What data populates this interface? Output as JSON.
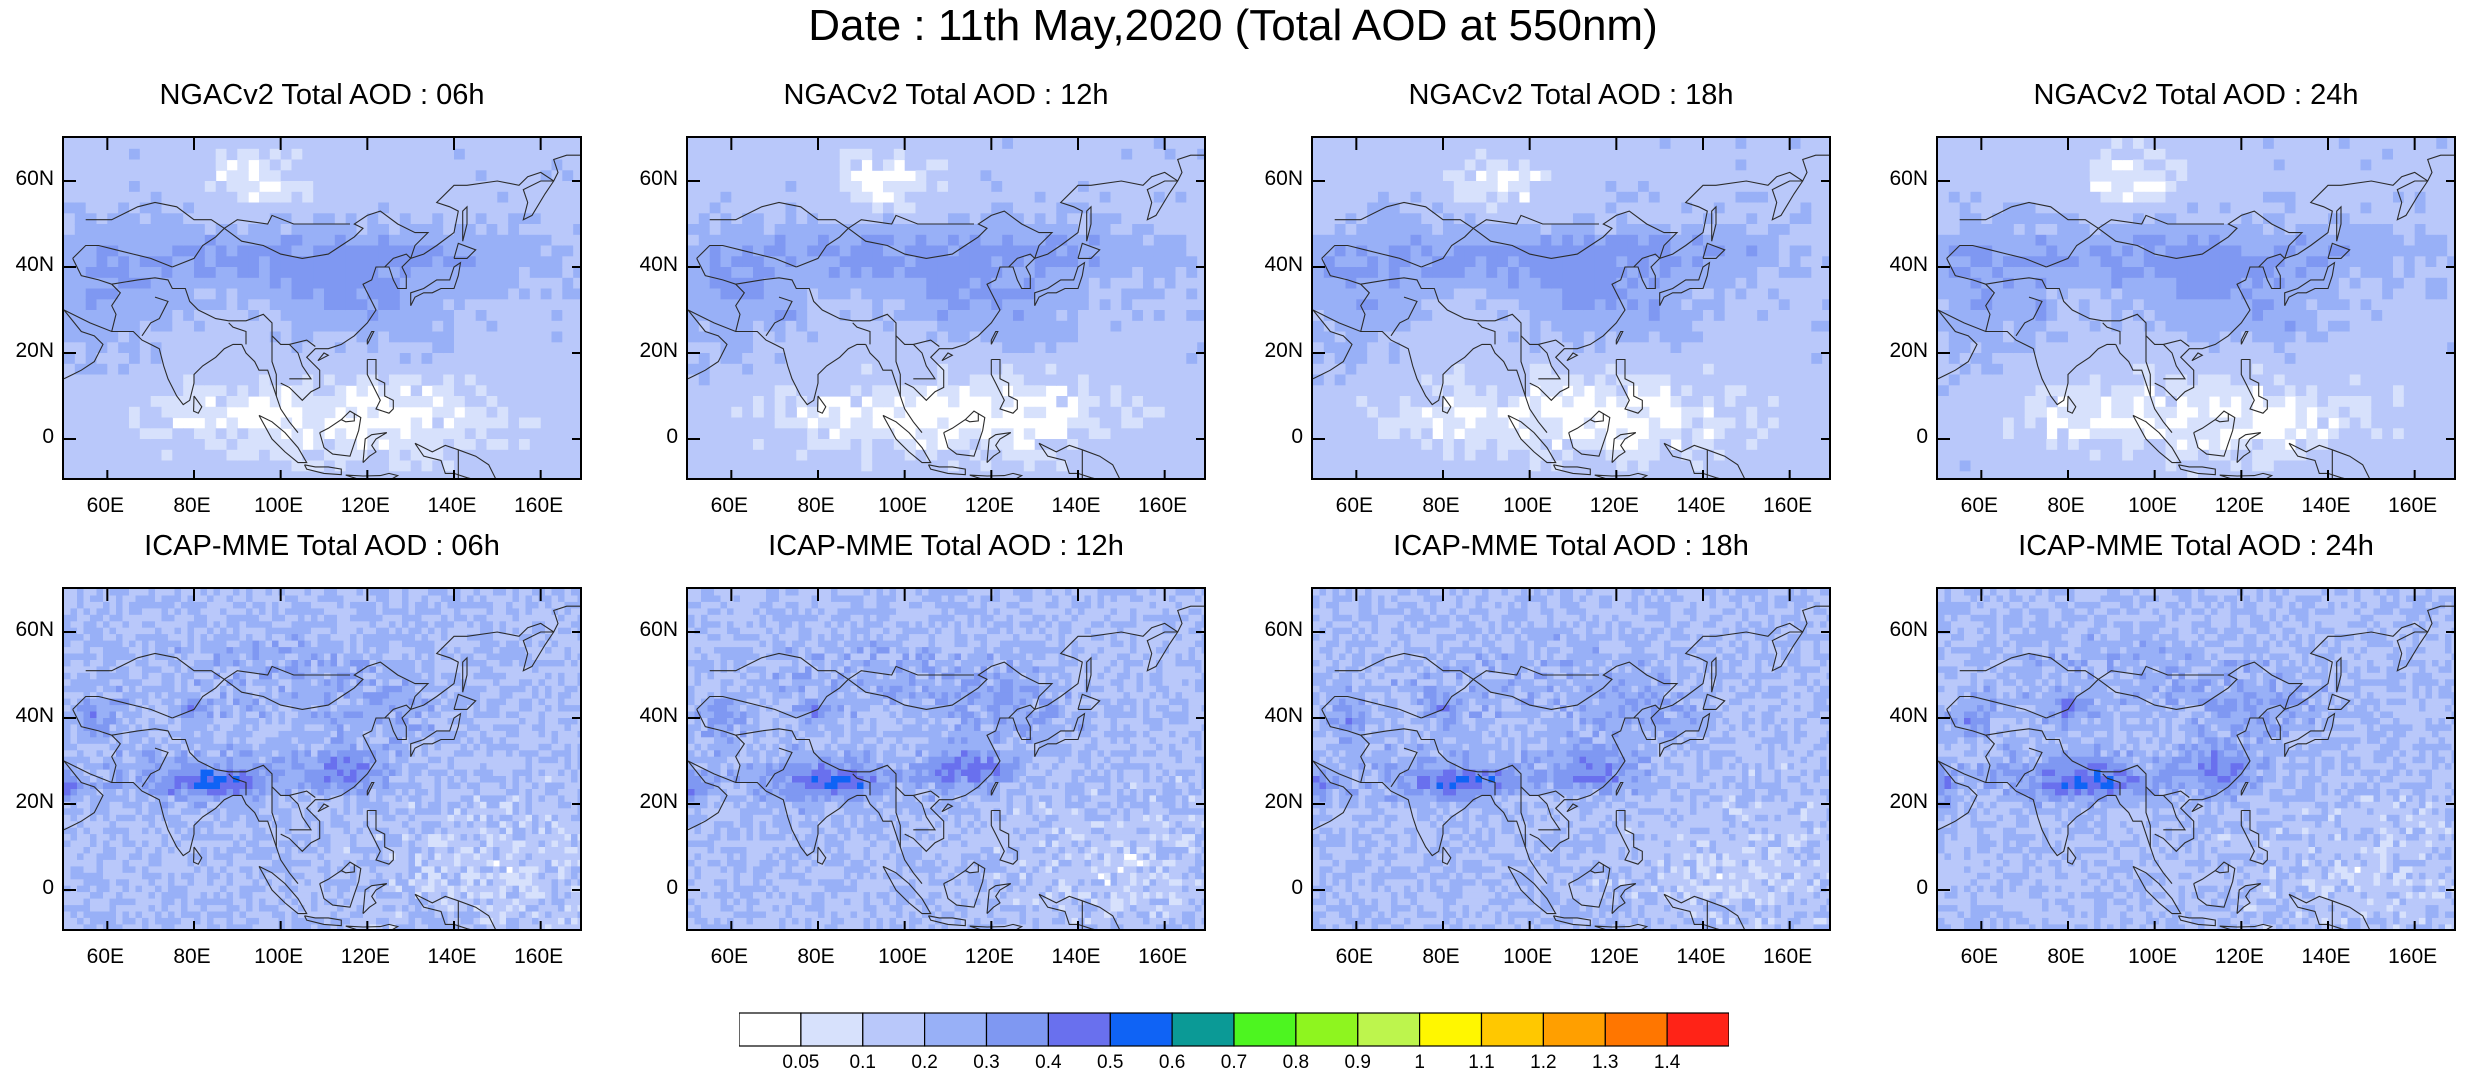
{
  "title": "Date : 11th May,2020 (Total AOD at 550nm)",
  "panels": [
    {
      "title": "NGACv2 Total AOD : 06h",
      "model": "ngac"
    },
    {
      "title": "NGACv2 Total AOD : 12h",
      "model": "ngac"
    },
    {
      "title": "NGACv2 Total AOD : 18h",
      "model": "ngac"
    },
    {
      "title": "NGACv2 Total AOD : 24h",
      "model": "ngac"
    },
    {
      "title": "ICAP-MME Total AOD : 06h",
      "model": "icap"
    },
    {
      "title": "ICAP-MME Total AOD : 12h",
      "model": "icap"
    },
    {
      "title": "ICAP-MME Total AOD : 18h",
      "model": "icap"
    },
    {
      "title": "ICAP-MME Total AOD : 24h",
      "model": "icap"
    }
  ],
  "axes": {
    "lat_ticks": [
      "60N",
      "40N",
      "20N",
      "0"
    ],
    "lat_values": [
      60,
      40,
      20,
      0
    ],
    "lon_ticks": [
      "60E",
      "80E",
      "100E",
      "120E",
      "140E",
      "160E"
    ],
    "lon_values": [
      60,
      80,
      100,
      120,
      140,
      160
    ],
    "lon_range": [
      50,
      170
    ],
    "lat_range": [
      -10,
      70
    ]
  },
  "colorbar": {
    "labels": [
      "0.05",
      "0.1",
      "0.2",
      "0.3",
      "0.4",
      "0.5",
      "0.6",
      "0.7",
      "0.8",
      "0.9",
      "1",
      "1.1",
      "1.2",
      "1.3",
      "1.4"
    ],
    "colors": [
      "#ffffff",
      "#d7e1fc",
      "#b9c8fa",
      "#98b0f7",
      "#7f98f2",
      "#6970ee",
      "#0f63f5",
      "#0b9a96",
      "#4df520",
      "#8ef51f",
      "#bdf54d",
      "#fff700",
      "#ffc800",
      "#ff9f00",
      "#ff7600",
      "#ff2317"
    ]
  }
}
